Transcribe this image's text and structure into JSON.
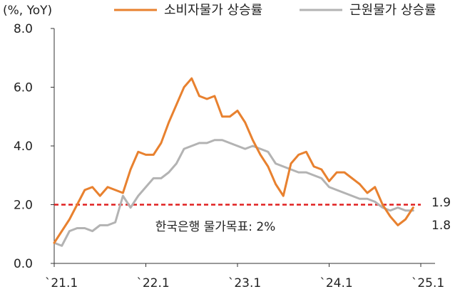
{
  "chart_data": {
    "type": "line",
    "ylabel": "(%, YoY)",
    "ylim": [
      0,
      8
    ],
    "yticks": [
      "0.0",
      "2.0",
      "4.0",
      "6.0",
      "8.0"
    ],
    "xticks": [
      {
        "label": "`21.1",
        "x": 0
      },
      {
        "label": "`22.1",
        "x": 12
      },
      {
        "label": "`23.1",
        "x": 24
      },
      {
        "label": "`24.1",
        "x": 36
      },
      {
        "label": "`25.1",
        "x": 48
      }
    ],
    "xlim": [
      0,
      48
    ],
    "grid": false,
    "legend_position": "top",
    "series": [
      {
        "name": "소비자물가 상승률",
        "color": "#e8812f",
        "end_label": "1.9",
        "values": [
          0.7,
          1.1,
          1.5,
          2.0,
          2.5,
          2.6,
          2.3,
          2.6,
          2.5,
          2.4,
          3.2,
          3.8,
          3.7,
          3.7,
          4.1,
          4.8,
          5.4,
          6.0,
          6.3,
          5.7,
          5.6,
          5.7,
          5.0,
          5.0,
          5.2,
          4.8,
          4.2,
          3.7,
          3.3,
          2.7,
          2.3,
          3.4,
          3.7,
          3.8,
          3.3,
          3.2,
          2.8,
          3.1,
          3.1,
          2.9,
          2.7,
          2.4,
          2.6,
          2.0,
          1.6,
          1.3,
          1.5,
          1.9
        ]
      },
      {
        "name": "근원물가 상승률",
        "color": "#b3b3b3",
        "end_label": "1.8",
        "values": [
          0.7,
          0.6,
          1.1,
          1.2,
          1.2,
          1.1,
          1.3,
          1.3,
          1.4,
          2.3,
          1.9,
          2.3,
          2.6,
          2.9,
          2.9,
          3.1,
          3.4,
          3.9,
          4.0,
          4.1,
          4.1,
          4.2,
          4.2,
          4.1,
          4.0,
          3.9,
          4.0,
          3.9,
          3.8,
          3.4,
          3.3,
          3.2,
          3.1,
          3.1,
          3.0,
          2.9,
          2.6,
          2.5,
          2.4,
          2.3,
          2.2,
          2.2,
          2.1,
          1.9,
          1.8,
          1.9,
          1.8,
          1.8
        ]
      }
    ],
    "reference_line": {
      "value": 2.0,
      "label": "한국은행 물가목표: 2%",
      "color": "#e02020"
    }
  }
}
